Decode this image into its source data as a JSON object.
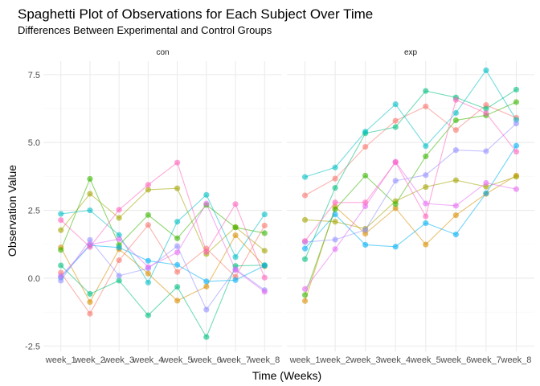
{
  "chart_data": {
    "type": "line",
    "title": "Spaghetti Plot of Observations for Each Subject Over Time",
    "subtitle": "Differences Between Experimental and Control Groups",
    "xlabel": "Time (Weeks)",
    "ylabel": "Observation Value",
    "x": [
      "week_1",
      "week_2",
      "week_3",
      "week_4",
      "week_5",
      "week_6",
      "week_7",
      "week_8"
    ],
    "ylim": [
      -2.7,
      8.0
    ],
    "yticks": [
      -2.5,
      0.0,
      2.5,
      5.0,
      7.5
    ],
    "ytick_labels": [
      "-2.5",
      "0.0",
      "2.5",
      "5.0",
      "7.5"
    ],
    "grid": true,
    "legend": "none",
    "colors": [
      "#F8766D",
      "#D89000",
      "#A3A500",
      "#39B600",
      "#00BF7D",
      "#00BFC4",
      "#00B0F6",
      "#9590FF",
      "#E76BF3",
      "#FF62BC"
    ],
    "panels": [
      {
        "name": "con",
        "series": [
          {
            "values": [
              0.2,
              -1.31,
              0.66,
              1.96,
              0.23,
              1.09,
              0.05,
              1.94
            ]
          },
          {
            "values": [
              1.13,
              -0.88,
              1.07,
              0.17,
              -0.83,
              -0.31,
              1.58,
              0.44
            ]
          },
          {
            "values": [
              1.77,
              3.11,
              2.22,
              3.26,
              3.31,
              0.89,
              1.88,
              1.01
            ]
          },
          {
            "values": [
              1.04,
              3.66,
              1.22,
              2.33,
              1.47,
              2.7,
              1.87,
              1.66
            ]
          },
          {
            "values": [
              0.47,
              -0.58,
              -0.09,
              -1.37,
              -0.32,
              -2.17,
              0.45,
              0.48
            ]
          },
          {
            "values": [
              2.37,
              2.5,
              1.59,
              -0.16,
              2.08,
              3.07,
              0.78,
              2.35
            ]
          },
          {
            "values": [
              0.03,
              1.21,
              1.13,
              0.64,
              0.49,
              -0.12,
              -0.07,
              0.46
            ]
          },
          {
            "values": [
              -0.09,
              1.41,
              0.09,
              0.36,
              1.18,
              -1.16,
              0.33,
              -0.44
            ]
          },
          {
            "values": [
              0.08,
              1.24,
              1.44,
              0.41,
              0.95,
              2.75,
              0.3,
              -0.5
            ]
          },
          {
            "values": [
              2.14,
              1.15,
              2.52,
              3.44,
              4.26,
              0.97,
              2.73,
              0.02
            ]
          }
        ]
      },
      {
        "name": "exp",
        "series": [
          {
            "values": [
              3.05,
              3.67,
              4.84,
              5.8,
              6.33,
              5.46,
              6.38,
              5.91
            ]
          },
          {
            "values": [
              -0.84,
              2.63,
              1.64,
              2.58,
              1.24,
              2.32,
              3.11,
              3.78
            ]
          },
          {
            "values": [
              2.15,
              2.08,
              1.82,
              2.84,
              3.36,
              3.61,
              3.37,
              3.74
            ]
          },
          {
            "values": [
              -0.62,
              2.54,
              3.78,
              2.73,
              4.49,
              5.82,
              6.0,
              6.49
            ]
          },
          {
            "values": [
              0.7,
              3.33,
              5.34,
              5.57,
              6.9,
              6.66,
              6.24,
              6.95
            ]
          },
          {
            "values": [
              3.73,
              4.08,
              5.4,
              6.41,
              4.87,
              6.09,
              7.66,
              5.83
            ]
          },
          {
            "values": [
              1.09,
              2.35,
              1.23,
              1.16,
              2.03,
              1.61,
              3.13,
              4.88
            ]
          },
          {
            "values": [
              1.33,
              1.42,
              1.78,
              3.59,
              3.8,
              4.72,
              4.68,
              5.7
            ]
          },
          {
            "values": [
              -0.4,
              1.07,
              2.65,
              4.29,
              2.75,
              2.67,
              3.51,
              3.28
            ]
          },
          {
            "values": [
              1.37,
              2.79,
              2.79,
              4.27,
              2.28,
              6.57,
              6.08,
              4.66
            ]
          }
        ]
      }
    ]
  }
}
